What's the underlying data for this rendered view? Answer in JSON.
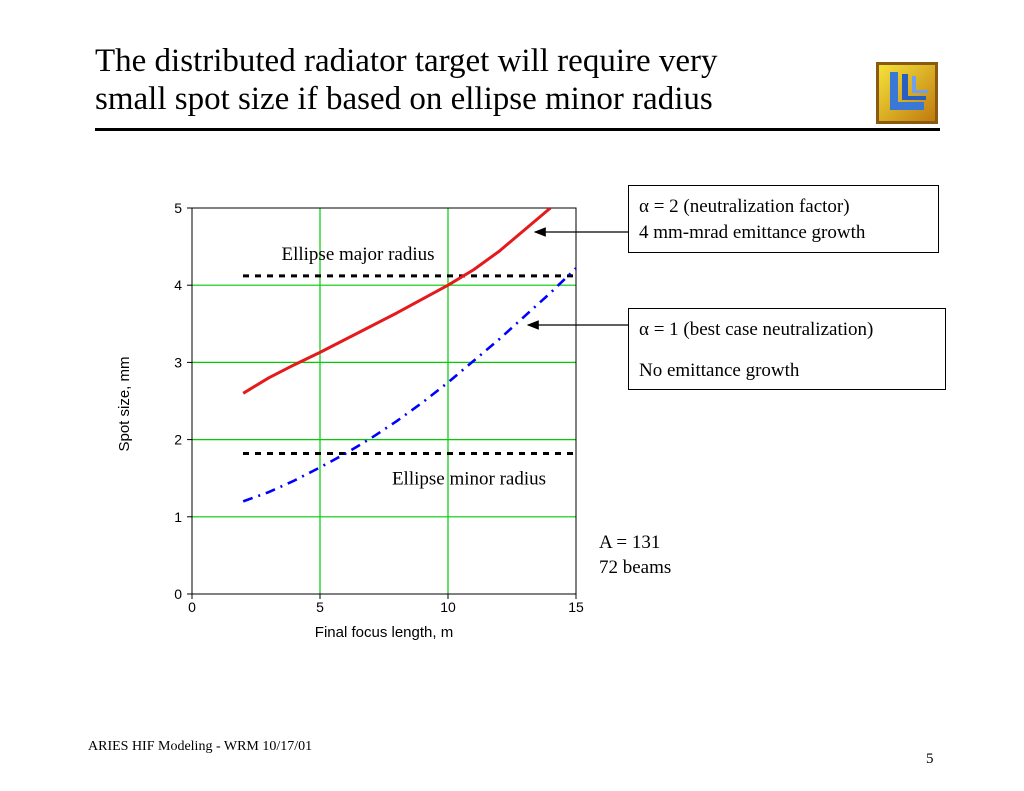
{
  "slide": {
    "title_line1": "The distributed radiator target will require very",
    "title_line2": "small spot size if based on ellipse minor radius",
    "footer": "ARIES HIF Modeling - WRM 10/17/01",
    "page_number": "5",
    "logo_icon": "llnl-logo-icon"
  },
  "callouts": {
    "alpha2_line1": "α = 2 (neutralization factor)",
    "alpha2_line2": "4 mm-mrad emittance growth",
    "alpha1_line1": "α = 1 (best case neutralization)",
    "alpha1_line2": "No emittance growth"
  },
  "note": {
    "line1": "A = 131",
    "line2": "72 beams"
  },
  "chart_data": {
    "type": "line",
    "title": "",
    "xlabel": "Final focus length, m",
    "ylabel": "Spot size, mm",
    "xlim": [
      0,
      15
    ],
    "ylim": [
      0,
      5
    ],
    "x_ticks": [
      "0",
      "5",
      "10",
      "15"
    ],
    "y_ticks": [
      "0",
      "1",
      "2",
      "3",
      "4",
      "5"
    ],
    "grid": true,
    "grid_color": "#00cc00",
    "series": [
      {
        "color": "#e41a1c",
        "style": "solid",
        "x": [
          2,
          3,
          4,
          5,
          6,
          7,
          8,
          9,
          10,
          11,
          12,
          13,
          14
        ],
        "y": [
          2.6,
          2.8,
          2.97,
          3.13,
          3.3,
          3.47,
          3.64,
          3.82,
          4.0,
          4.2,
          4.44,
          4.72,
          5.0
        ]
      },
      {
        "color": "#0000ff",
        "style": "dash-dot",
        "x": [
          2,
          3,
          4,
          5,
          6,
          7,
          8,
          9,
          10,
          11,
          12,
          13,
          14,
          15
        ],
        "y": [
          1.2,
          1.32,
          1.47,
          1.64,
          1.82,
          2.02,
          2.24,
          2.48,
          2.74,
          3.02,
          3.3,
          3.6,
          3.9,
          4.22
        ]
      }
    ],
    "reference_lines": [
      {
        "y": 4.12,
        "label": "Ellipse major radius"
      },
      {
        "y": 1.82,
        "label": "Ellipse minor radius"
      }
    ]
  }
}
